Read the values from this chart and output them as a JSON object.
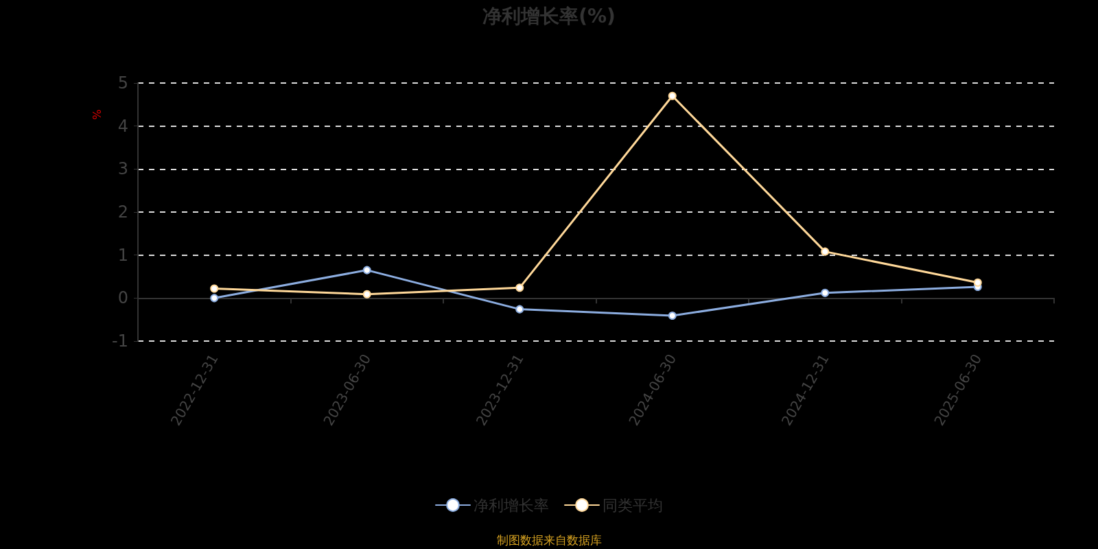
{
  "chart_data": {
    "type": "line",
    "title": "净利增长率(%)",
    "ylabel": "%",
    "categories": [
      "2022-12-31",
      "2023-06-30",
      "2023-12-31",
      "2024-06-30",
      "2024-12-31",
      "2025-06-30"
    ],
    "series": [
      {
        "name": "净利增长率",
        "color": "#8cade0",
        "values": [
          0,
          0.65,
          -0.26,
          -0.41,
          0.12,
          0.26
        ]
      },
      {
        "name": "同类平均",
        "color": "#ffd899",
        "values": [
          0.22,
          0.09,
          0.24,
          4.7,
          1.08,
          0.36
        ]
      }
    ],
    "ylim": [
      -1,
      5
    ],
    "yticks": [
      -1,
      0,
      1,
      2,
      3,
      4,
      5
    ],
    "grid": "y",
    "legend": "bottom",
    "marker": "circle",
    "line_style": "solid",
    "annotations": [
      "制图数据来自数据库"
    ]
  }
}
